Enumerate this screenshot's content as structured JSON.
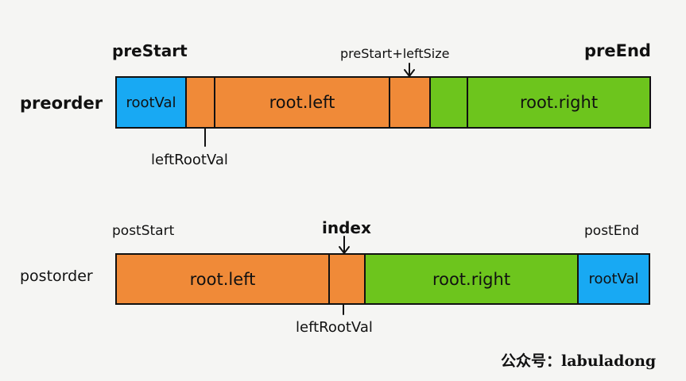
{
  "colors": {
    "root": "#18a9f3",
    "left": "#f08a38",
    "right": "#6dc51d",
    "background": "#f5f5f3"
  },
  "preorder": {
    "row_label": "preorder",
    "start_label": "preStart",
    "end_label": "preEnd",
    "split_label": "preStart+leftSize",
    "left_root_label": "leftRootVal",
    "cells": {
      "root": "rootVal",
      "left": "root.left",
      "right": "root.right"
    }
  },
  "postorder": {
    "row_label": "postorder",
    "start_label": "postStart",
    "end_label": "postEnd",
    "index_label": "index",
    "left_root_label": "leftRootVal",
    "cells": {
      "left": "root.left",
      "right": "root.right",
      "root": "rootVal"
    }
  },
  "watermark": "公众号：labuladong"
}
